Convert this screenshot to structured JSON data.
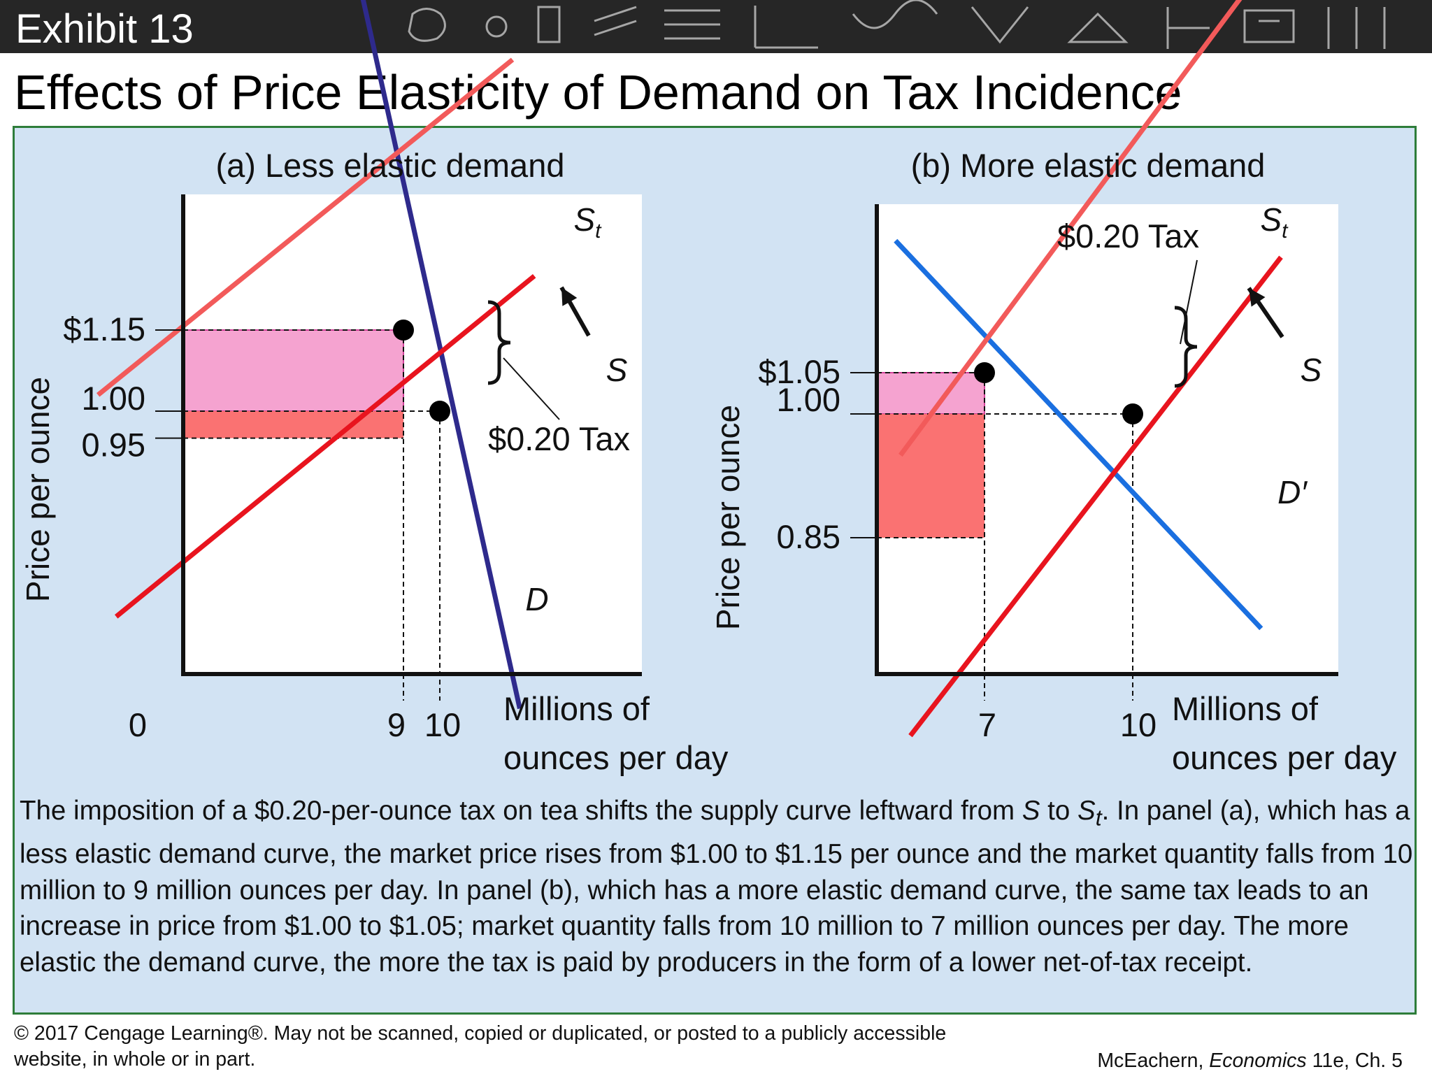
{
  "header": {
    "exhibit_label": "Exhibit 13",
    "background": "#262626"
  },
  "title": "Effects of Price Elasticity of Demand on Tax Incidence",
  "colors": {
    "demand_a": "#2e2a8c",
    "demand_b": "#1a6fe0",
    "supply": "#e8141e",
    "supply_tax": "#f25a5a",
    "consumer_share": "#f5a3d0",
    "producer_share": "#fa7272",
    "panel_bg": "#d2e3f3",
    "panel_border": "#2e7d3a"
  },
  "chart_data": [
    {
      "type": "line",
      "title": "(a) Less elastic demand",
      "ylabel": "Price per ounce",
      "xlabel_line1": "Millions of",
      "xlabel_line2": "ounces per day",
      "origin_label": "0",
      "x_ticks": [
        {
          "value": 9,
          "label": "9"
        },
        {
          "value": 10,
          "label": "10"
        }
      ],
      "y_ticks": [
        {
          "value": 1.15,
          "label": "$1.15"
        },
        {
          "value": 1.0,
          "label": "1.00"
        },
        {
          "value": 0.95,
          "label": "0.95"
        }
      ],
      "series": [
        {
          "name": "D",
          "x": [
            7.5,
            12.2
          ],
          "y": [
            1.88,
            0.45
          ]
        },
        {
          "name": "S",
          "x": [
            1.1,
            12.6
          ],
          "y": [
            0.62,
            1.25
          ]
        },
        {
          "name": "St",
          "x": [
            0.6,
            12.0
          ],
          "y": [
            1.03,
            1.65
          ]
        }
      ],
      "equilibria": [
        {
          "x": 9,
          "y": 1.15
        },
        {
          "x": 10,
          "y": 1.0
        }
      ],
      "tax_label": "$0.20 Tax",
      "tax_amount": 0.2
    },
    {
      "type": "line",
      "title": "(b) More elastic demand",
      "ylabel": "Price per ounce",
      "xlabel_line1": "Millions of",
      "xlabel_line2": "ounces per day",
      "x_ticks": [
        {
          "value": 7,
          "label": "7"
        },
        {
          "value": 10,
          "label": "10"
        }
      ],
      "y_ticks": [
        {
          "value": 1.05,
          "label": "$1.05"
        },
        {
          "value": 1.0,
          "label": "1.00"
        },
        {
          "value": 0.85,
          "label": "0.85"
        }
      ],
      "series": [
        {
          "name": "D′",
          "x": [
            5.2,
            12.6
          ],
          "y": [
            1.21,
            0.74
          ]
        },
        {
          "name": "S",
          "x": [
            5.5,
            13.0
          ],
          "y": [
            0.61,
            1.19
          ]
        },
        {
          "name": "St",
          "x": [
            5.3,
            13.0
          ],
          "y": [
            0.95,
            1.57
          ]
        }
      ],
      "equilibria": [
        {
          "x": 7,
          "y": 1.05
        },
        {
          "x": 10,
          "y": 1.0
        }
      ],
      "tax_label": "$0.20 Tax",
      "tax_amount": 0.2
    }
  ],
  "caption": {
    "p1": "The imposition of a $0.20-per-ounce tax on tea shifts the supply curve leftward from ",
    "s": "S",
    "p2": " to ",
    "st_base": "S",
    "st_sub": "t",
    "p3": ". In panel (a), which has a less elastic demand curve, the market price rises from $1.00 to $1.15 per ounce and the market quantity falls from 10 million to 9 million ounces per day. In panel (b), which has a more elastic demand curve, the same tax leads to an increase in price from $1.00 to $1.05; market quantity falls from 10 million to 7 million ounces per day. The more elastic the demand curve, the more the tax is paid by producers in the form of a lower net-of-tax receipt."
  },
  "footer": {
    "copyright": "© 2017 Cengage Learning®. May not be scanned, copied or duplicated, or posted to a publicly accessible website, in whole or in part.",
    "credit_author": "McEachern, ",
    "credit_book": "Economics",
    "credit_rest": " 11e, Ch. 5"
  }
}
